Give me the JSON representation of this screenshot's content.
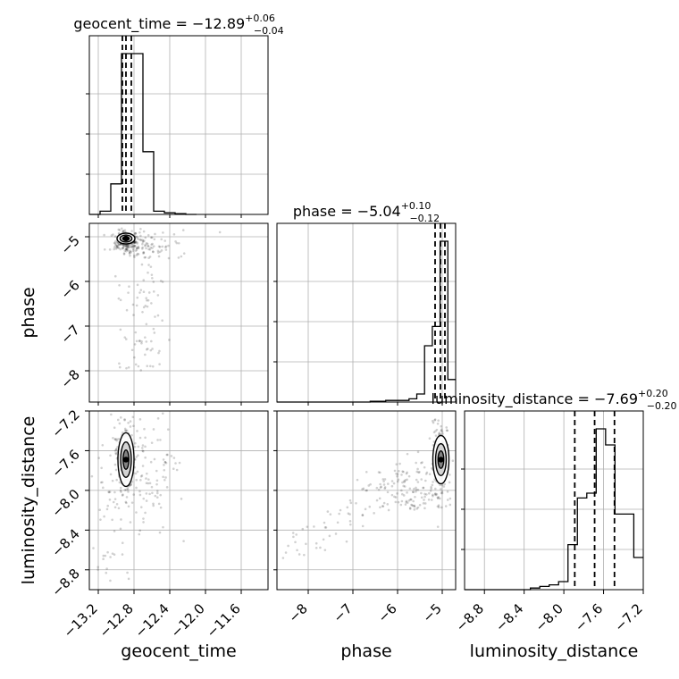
{
  "chart_data": {
    "type": "corner",
    "parameters": [
      {
        "name": "geocent_time",
        "label": "geocent_time",
        "title": {
          "prefix": "geocent_time = ",
          "median": "−12.89",
          "upper": "+0.06",
          "lower": "−0.04"
        },
        "range": [
          -13.3,
          -11.3
        ],
        "ticks": [
          -13.2,
          -12.8,
          -12.4,
          -12.0,
          -11.6
        ],
        "tick_labels": [
          "−13.2",
          "−12.8",
          "−12.4",
          "−12.0",
          "−11.6"
        ],
        "quantiles": [
          -12.93,
          -12.89,
          -12.83
        ],
        "histogram": [
          0.0,
          0.02,
          0.19,
          1.0,
          1.0,
          0.39,
          0.02,
          0.01,
          0.005,
          0.0
        ],
        "histogram_bin_width": 0.12
      },
      {
        "name": "phase",
        "label": "phase",
        "title": {
          "prefix": "phase = ",
          "median": "−5.04",
          "upper": "+0.10",
          "lower": "−0.12"
        },
        "range": [
          -8.7,
          -4.7
        ],
        "ticks": [
          -8,
          -7,
          -6,
          -5
        ],
        "tick_labels": [
          "−8",
          "−7",
          "−6",
          "−5"
        ],
        "quantiles": [
          -5.16,
          -5.04,
          -4.94
        ],
        "histogram": [
          0.0,
          0.0,
          0.0,
          0.0,
          0.0,
          0.0,
          0.0,
          0.0,
          0.0,
          0.0,
          0.0,
          0.0,
          0.005,
          0.005,
          0.01,
          0.01,
          0.01,
          0.02,
          0.05,
          0.35,
          0.47,
          1.0,
          0.14
        ],
        "histogram_bin_width": 0.1739
      },
      {
        "name": "luminosity_distance",
        "label": "luminosity_distance",
        "title": {
          "prefix": "luminosity_distance = ",
          "median": "−7.69",
          "upper": "+0.20",
          "lower": "−0.20"
        },
        "range": [
          -9.0,
          -7.2
        ],
        "ticks": [
          -8.8,
          -8.4,
          -8.0,
          -7.6,
          -7.2
        ],
        "tick_labels": [
          "−8.8",
          "−8.4",
          "−8.0",
          "−7.6",
          "−7.2"
        ],
        "quantiles": [
          -7.89,
          -7.69,
          -7.49
        ],
        "histogram": [
          0.0,
          0.0,
          0.0,
          0.0,
          0.0,
          0.0,
          0.0,
          0.01,
          0.02,
          0.03,
          0.05,
          0.28,
          0.57,
          0.6,
          1.0,
          0.9,
          0.47,
          0.47,
          0.2
        ],
        "histogram_bin_width": 0.0947
      }
    ],
    "joint": {
      "phase_vs_geocent_time": {
        "core": {
          "x": -12.89,
          "y": -5.04
        },
        "contour_levels": 3
      },
      "luminosity_distance_vs_geocent_time": {
        "core": {
          "x": -12.89,
          "y": -7.69
        },
        "contour_levels": 3
      },
      "luminosity_distance_vs_phase": {
        "core": {
          "x": -5.03,
          "y": -7.69
        },
        "contour_levels": 3
      }
    },
    "grid": true
  }
}
